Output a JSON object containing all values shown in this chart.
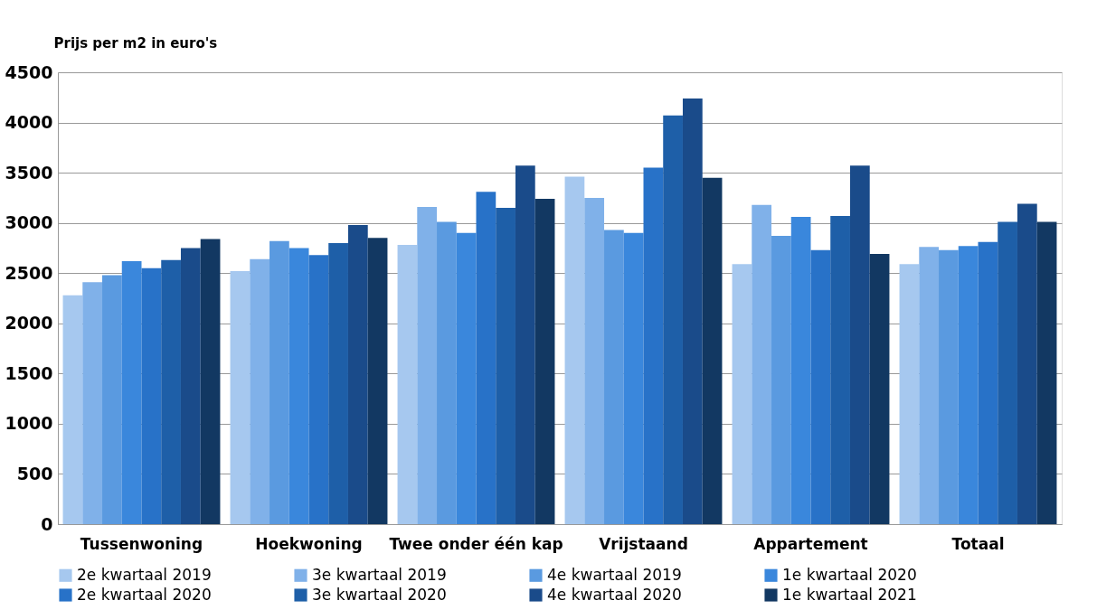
{
  "chart_data": {
    "type": "bar",
    "ylabel": "Prijs per m2 in euro's",
    "categories": [
      "Tussenwoning",
      "Hoekwoning",
      "Twee onder één kap",
      "Vrijstaand",
      "Appartement",
      "Totaal"
    ],
    "series": [
      {
        "name": "2e kwartaal 2019",
        "color": "#a6c8ef",
        "values": [
          2280,
          2520,
          2780,
          3460,
          2590,
          2590
        ]
      },
      {
        "name": "3e kwartaal 2019",
        "color": "#80b1e9",
        "values": [
          2410,
          2640,
          3160,
          3250,
          3180,
          2760
        ]
      },
      {
        "name": "4e kwartaal 2019",
        "color": "#5a9ae0",
        "values": [
          2480,
          2820,
          3010,
          2930,
          2870,
          2730
        ]
      },
      {
        "name": "1e kwartaal 2020",
        "color": "#3a87dc",
        "values": [
          2620,
          2750,
          2900,
          2900,
          3060,
          2770
        ]
      },
      {
        "name": "2e kwartaal 2020",
        "color": "#2872c8",
        "values": [
          2550,
          2680,
          3310,
          3550,
          2730,
          2810
        ]
      },
      {
        "name": "3e kwartaal 2020",
        "color": "#1e5fa8",
        "values": [
          2630,
          2800,
          3150,
          4070,
          3070,
          3010
        ]
      },
      {
        "name": "4e kwartaal 2020",
        "color": "#1a4b8a",
        "values": [
          2750,
          2980,
          3570,
          4240,
          3570,
          3190
        ]
      },
      {
        "name": "1e kwartaal 2021",
        "color": "#123862",
        "values": [
          2840,
          2850,
          3240,
          3450,
          2690,
          3010
        ]
      }
    ],
    "ylim": [
      0,
      4500
    ],
    "yticks": [
      0,
      500,
      1000,
      1500,
      2000,
      2500,
      3000,
      3500,
      4000,
      4500
    ],
    "grid": "y",
    "legend": "bottom"
  }
}
